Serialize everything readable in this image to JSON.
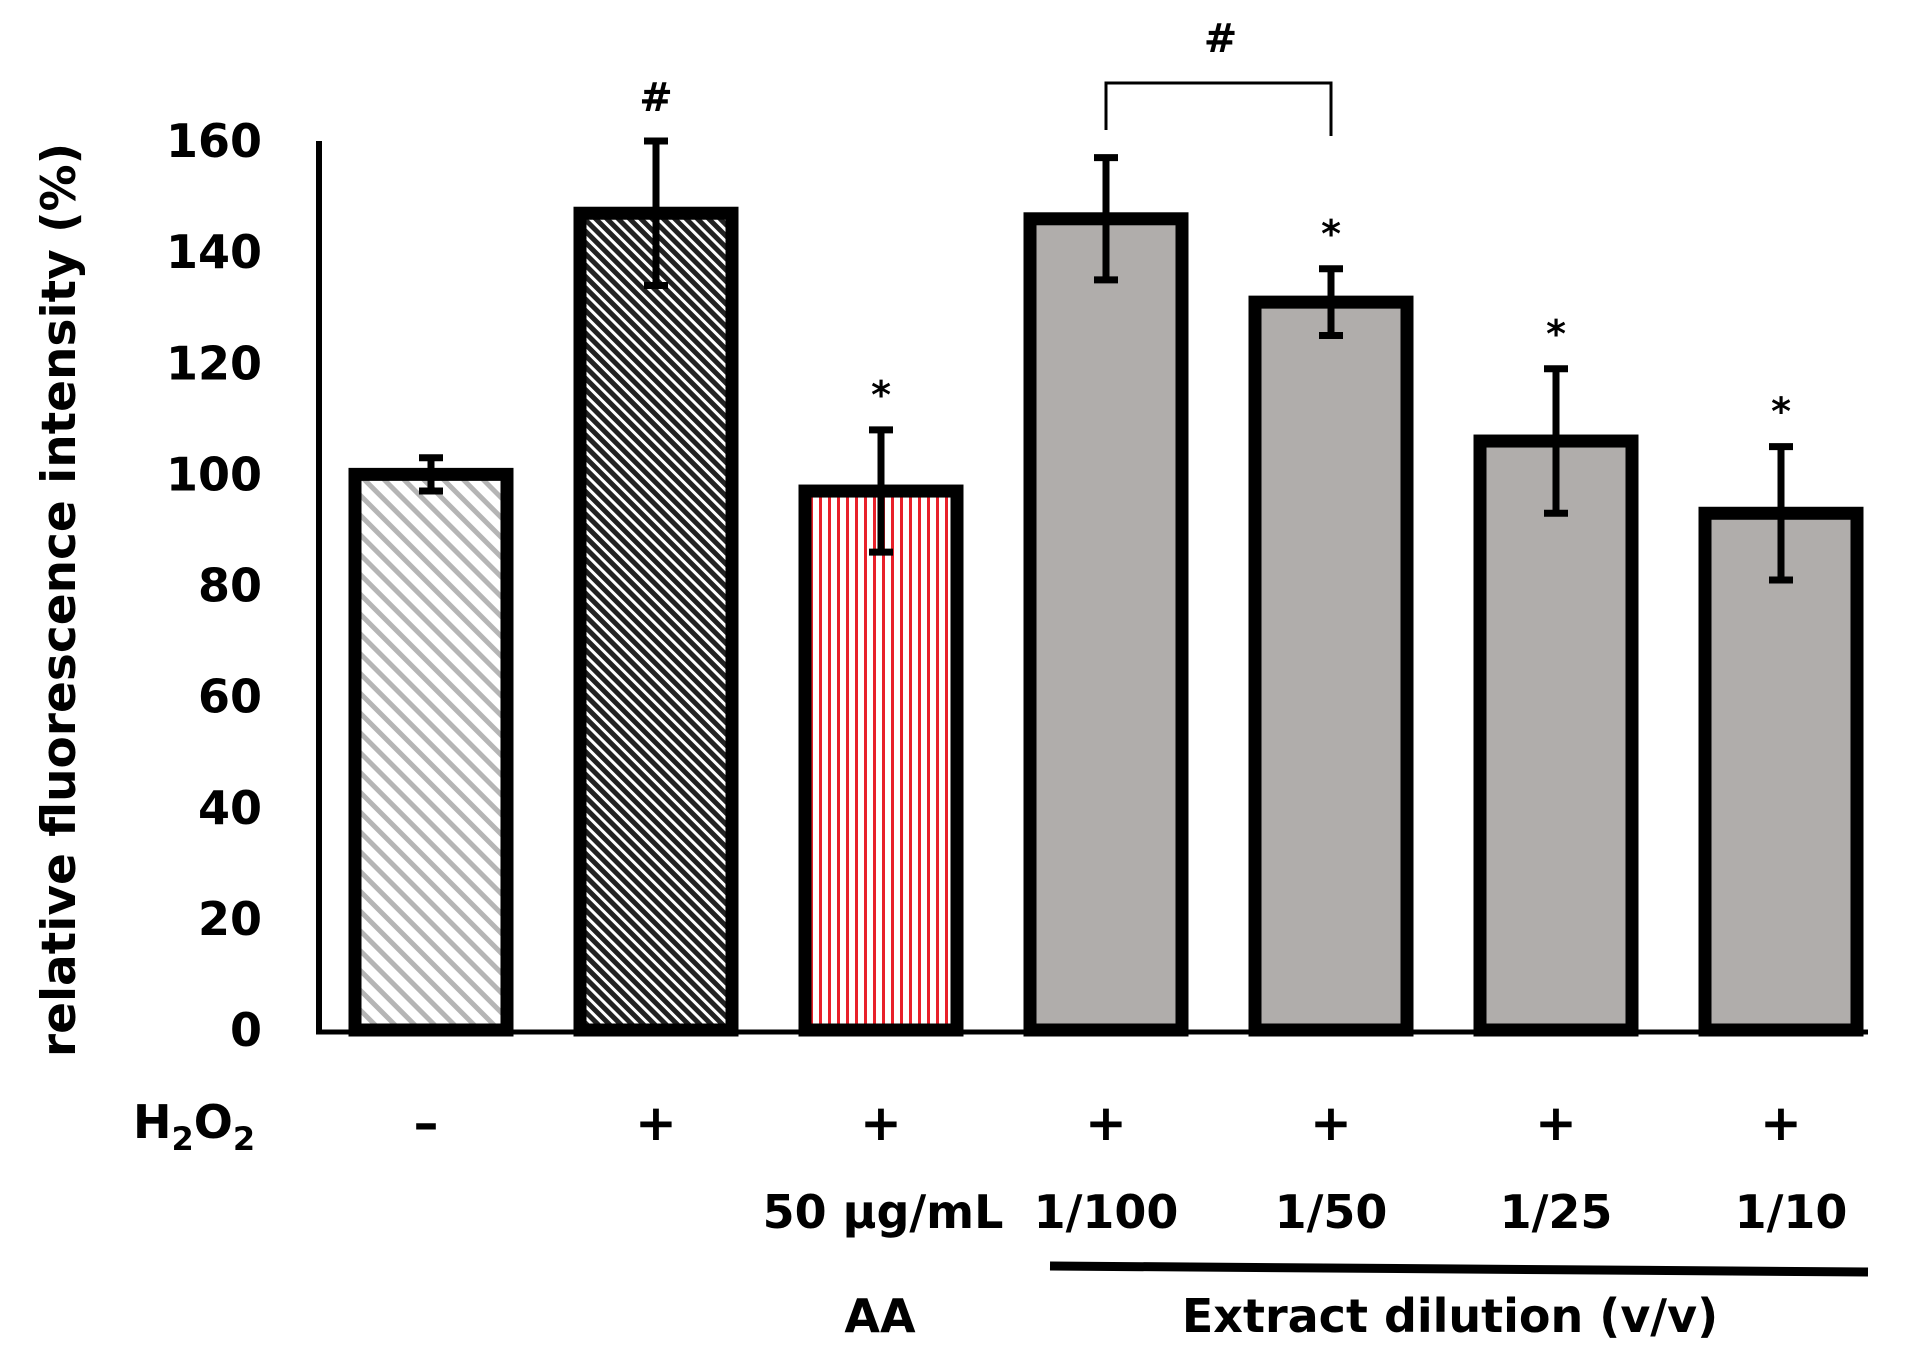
{
  "chart_data": {
    "type": "bar",
    "title": "",
    "xlabel": "",
    "ylabel": "relative fluorescence intensity (%)",
    "ylim": [
      0,
      160
    ],
    "yticks": [
      0,
      20,
      40,
      60,
      80,
      100,
      120,
      140,
      160
    ],
    "grid": false,
    "row_label": "H2O2",
    "row_label_main": "H",
    "row_label_sub1": "2",
    "row_label_mid": "O",
    "row_label_sub2": "2",
    "bars": [
      {
        "h2o2": "–",
        "dose": "",
        "value": 100,
        "error": 3,
        "marker": "",
        "fill": "#d4d4d4",
        "pattern": "diag-light"
      },
      {
        "h2o2": "+",
        "dose": "",
        "value": 147,
        "error": 13,
        "marker": "#",
        "fill": "#3a3a3a",
        "pattern": "diag-dark"
      },
      {
        "h2o2": "+",
        "dose": "50 µg/mL",
        "value": 97,
        "error": 11,
        "marker": "*",
        "fill": "#e8202a",
        "pattern": "vert-red"
      },
      {
        "h2o2": "+",
        "dose": "1/100",
        "value": 146,
        "error": 11,
        "marker": "",
        "fill": "#b0adab",
        "pattern": "solid"
      },
      {
        "h2o2": "+",
        "dose": "1/50",
        "value": 131,
        "error": 6,
        "marker": "*",
        "fill": "#b0adab",
        "pattern": "solid"
      },
      {
        "h2o2": "+",
        "dose": "1/25",
        "value": 106,
        "error": 13,
        "marker": "*",
        "fill": "#b0adab",
        "pattern": "solid"
      },
      {
        "h2o2": "+",
        "dose": "1/10",
        "value": 93,
        "error": 12,
        "marker": "*",
        "fill": "#b0adab",
        "pattern": "solid"
      }
    ],
    "comparison": {
      "from_bar": 3,
      "to_bar": 4,
      "label": "#"
    },
    "groups": {
      "aa_label": "AA",
      "extract_label": "Extract dilution (v/v)"
    }
  }
}
